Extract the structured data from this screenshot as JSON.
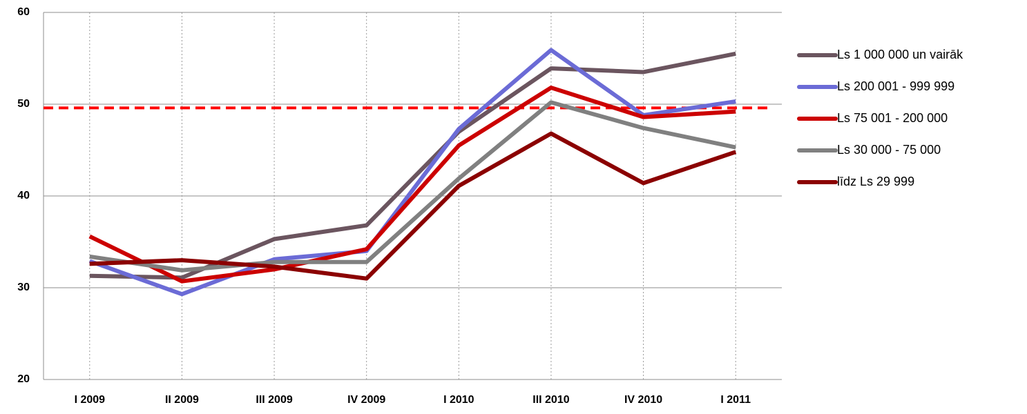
{
  "chart_data": {
    "type": "line",
    "categories": [
      "I 2009",
      "II 2009",
      "III 2009",
      "IV 2009",
      "I 2010",
      "III 2010",
      "IV 2010",
      "I 2011"
    ],
    "series": [
      {
        "name": "Ls 1 000 000 un vairāk",
        "color": "#6b555f",
        "values": [
          31.3,
          31.1,
          35.3,
          36.8,
          47.0,
          53.9,
          53.5,
          55.5
        ]
      },
      {
        "name": "Ls 200 001 - 999 999",
        "color": "#6b6bd6",
        "values": [
          32.9,
          29.3,
          33.1,
          34.0,
          47.3,
          55.9,
          48.8,
          50.3
        ]
      },
      {
        "name": "Ls 75 001 - 200 000",
        "color": "#cc0000",
        "values": [
          35.6,
          30.7,
          32.0,
          34.2,
          45.5,
          51.8,
          48.6,
          49.2
        ]
      },
      {
        "name": "Ls 30 000 - 75 000",
        "color": "#808080",
        "values": [
          33.4,
          31.9,
          32.8,
          32.8,
          41.9,
          50.2,
          47.4,
          45.3
        ]
      },
      {
        "name": "līdz Ls 29 999",
        "color": "#8b0000",
        "values": [
          32.6,
          33.0,
          32.3,
          31.0,
          41.1,
          46.8,
          41.4,
          44.8
        ]
      }
    ],
    "ylim": [
      20,
      60
    ],
    "yticks": [
      20,
      30,
      40,
      50,
      60
    ],
    "grid": true,
    "legend": "right",
    "reference_line": {
      "value": 49.6,
      "color": "#ff0000"
    }
  }
}
